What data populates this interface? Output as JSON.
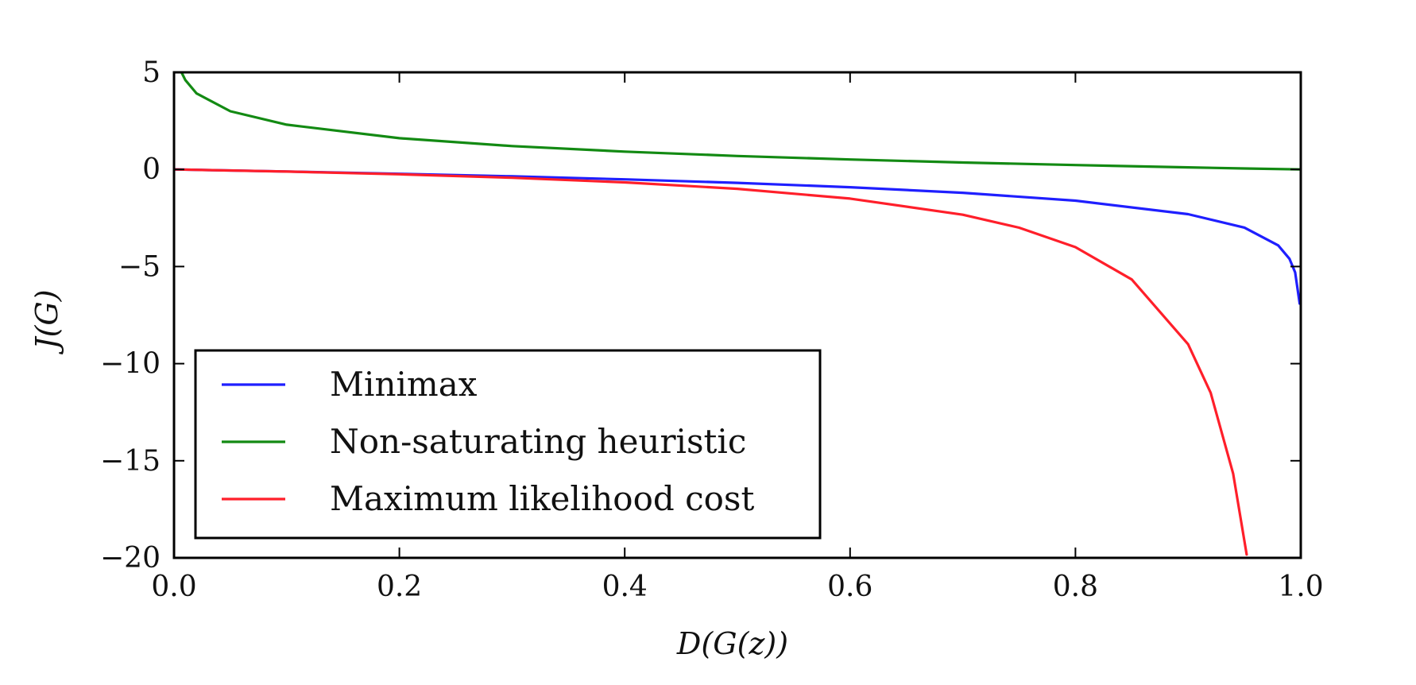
{
  "chart_data": {
    "type": "line",
    "title": "",
    "xlabel": "D(G(z))",
    "ylabel": "J(G)",
    "xlim": [
      0.0,
      1.0
    ],
    "ylim": [
      -20,
      5
    ],
    "grid": false,
    "legend_position": "bottom-left",
    "x_ticks": [
      "0.0",
      "0.2",
      "0.4",
      "0.6",
      "0.8",
      "1.0"
    ],
    "y_ticks": [
      "5",
      "0",
      "−5",
      "−10",
      "−15",
      "−20"
    ],
    "x_tick_values": [
      0.0,
      0.2,
      0.4,
      0.6,
      0.8,
      1.0
    ],
    "y_tick_values": [
      5,
      0,
      -5,
      -10,
      -15,
      -20
    ],
    "series": [
      {
        "name": "Minimax",
        "color": "#1f1fff",
        "x": [
          0.0,
          0.1,
          0.2,
          0.3,
          0.4,
          0.5,
          0.6,
          0.7,
          0.8,
          0.9,
          0.95,
          0.98,
          0.99,
          0.995,
          0.999
        ],
        "y": [
          0.0,
          -0.105,
          -0.223,
          -0.357,
          -0.511,
          -0.693,
          -0.916,
          -1.204,
          -1.609,
          -2.303,
          -2.996,
          -3.912,
          -4.605,
          -5.298,
          -6.908
        ]
      },
      {
        "name": "Non-saturating heuristic",
        "color": "#138a13",
        "x": [
          0.007,
          0.01,
          0.02,
          0.05,
          0.1,
          0.2,
          0.3,
          0.4,
          0.5,
          0.6,
          0.7,
          0.8,
          0.9,
          0.95,
          1.0
        ],
        "y": [
          4.96,
          4.605,
          3.912,
          2.996,
          2.303,
          1.609,
          1.204,
          0.916,
          0.693,
          0.511,
          0.357,
          0.223,
          0.105,
          0.051,
          0.0
        ]
      },
      {
        "name": "Maximum likelihood cost",
        "color": "#ff1f2a",
        "x": [
          0.0,
          0.1,
          0.2,
          0.3,
          0.4,
          0.5,
          0.6,
          0.7,
          0.75,
          0.8,
          0.85,
          0.9,
          0.92,
          0.94,
          0.952
        ],
        "y": [
          0.0,
          -0.111,
          -0.25,
          -0.429,
          -0.667,
          -1.0,
          -1.5,
          -2.333,
          -3.0,
          -4.0,
          -5.667,
          -9.0,
          -11.5,
          -15.667,
          -19.83
        ]
      }
    ]
  }
}
